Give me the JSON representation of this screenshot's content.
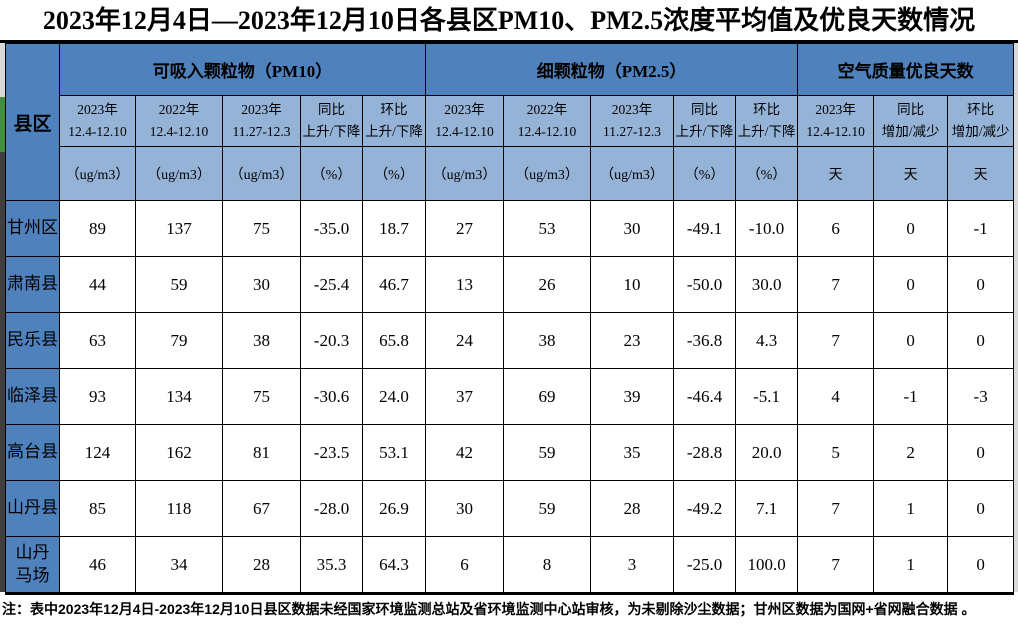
{
  "title": "2023年12月4日—2023年12月10日各县区PM10、PM2.5浓度平均值及优良天数情况",
  "table": {
    "corner_label": "县区",
    "groups": [
      {
        "id": "pm10",
        "label": "可吸入颗粒物（PM10）",
        "cols": 5
      },
      {
        "id": "pm25",
        "label": "细颗粒物（PM2.5）",
        "cols": 5
      },
      {
        "id": "good-days",
        "label": "空气质量优良天数",
        "cols": 3
      }
    ],
    "sub_headers": [
      "2023年\n12.4-12.10",
      "2022年\n12.4-12.10",
      "2023年\n11.27-12.3",
      "同比\n上升/下降",
      "环比\n上升/下降",
      "2023年\n12.4-12.10",
      "2022年\n12.4-12.10",
      "2023年\n11.27-12.3",
      "同比\n上升/下降",
      "环比\n上升/下降",
      "2023年\n12.4-12.10",
      "同比\n增加/减少",
      "环比\n增加/减少"
    ],
    "unit_row": [
      "（ug/m3）",
      "（ug/m3）",
      "（ug/m3）",
      "（%）",
      "（%）",
      "（ug/m3）",
      "（ug/m3）",
      "（ug/m3）",
      "（%）",
      "（%）",
      "天",
      "天",
      "天"
    ],
    "rows": [
      {
        "name": "甘州区",
        "values": [
          "89",
          "137",
          "75",
          "-35.0",
          "18.7",
          "27",
          "53",
          "30",
          "-49.1",
          "-10.0",
          "6",
          "0",
          "-1"
        ]
      },
      {
        "name": "肃南县",
        "values": [
          "44",
          "59",
          "30",
          "-25.4",
          "46.7",
          "13",
          "26",
          "10",
          "-50.0",
          "30.0",
          "7",
          "0",
          "0"
        ]
      },
      {
        "name": "民乐县",
        "values": [
          "63",
          "79",
          "38",
          "-20.3",
          "65.8",
          "24",
          "38",
          "23",
          "-36.8",
          "4.3",
          "7",
          "0",
          "0"
        ]
      },
      {
        "name": "临泽县",
        "values": [
          "93",
          "134",
          "75",
          "-30.6",
          "24.0",
          "37",
          "69",
          "39",
          "-46.4",
          "-5.1",
          "4",
          "-1",
          "-3"
        ]
      },
      {
        "name": "高台县",
        "values": [
          "124",
          "162",
          "81",
          "-23.5",
          "53.1",
          "42",
          "59",
          "35",
          "-28.8",
          "20.0",
          "5",
          "2",
          "0"
        ]
      },
      {
        "name": "山丹县",
        "values": [
          "85",
          "118",
          "67",
          "-28.0",
          "26.9",
          "30",
          "59",
          "28",
          "-49.2",
          "7.1",
          "7",
          "1",
          "0"
        ]
      },
      {
        "name": "山丹\n马场",
        "values": [
          "46",
          "34",
          "28",
          "35.3",
          "64.3",
          "6",
          "8",
          "3",
          "-25.0",
          "100.0",
          "7",
          "1",
          "0"
        ]
      }
    ]
  },
  "footnote": "注：表中2023年12月4日-2023年12月10日县区数据未经国家环境监测总站及省环境监测中心站审核，为未剔除沙尘数据；甘州区数据为国网+省网融合数据 。",
  "colors": {
    "header_blue": "#4f81bd",
    "subheader_blue": "#95b3d7",
    "border_black": "#000000",
    "edge_strip_green": "#3f8f3f",
    "edge_strip_dark": "#404040",
    "edge_strip_gray": "#d9d9d9"
  }
}
